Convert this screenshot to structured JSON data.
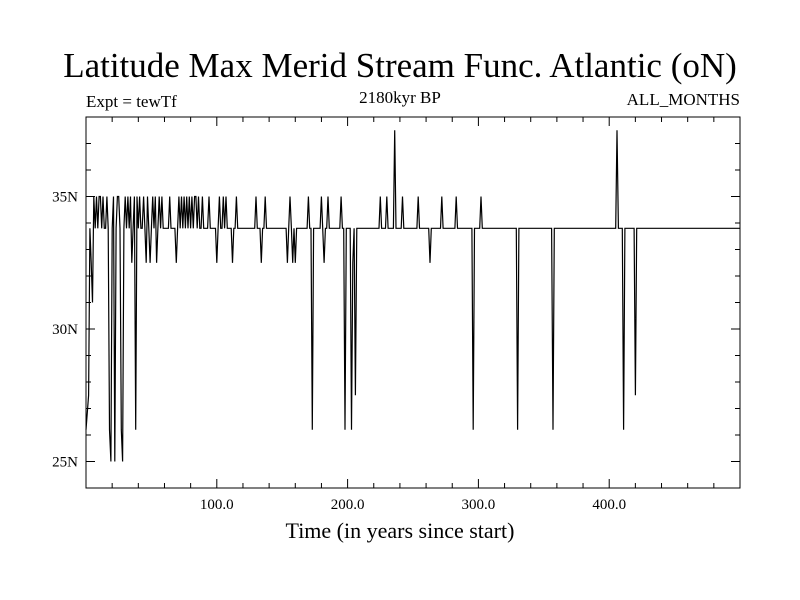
{
  "title": "Latitude Max Merid Stream Func. Atlantic (oN)",
  "left_subtitle": "Expt = tewTf",
  "center_subtitle": "2180kyr BP",
  "right_subtitle": "ALL_MONTHS",
  "chart_data": {
    "type": "line",
    "xlabel": "Time (in years since start)",
    "ylabel": "",
    "xlim": [
      0,
      500
    ],
    "ylim": [
      24,
      38
    ],
    "x_ticks": [
      100,
      200,
      300,
      400
    ],
    "x_tick_labels": [
      "100.0",
      "200.0",
      "300.0",
      "400.0"
    ],
    "y_ticks": [
      25,
      30,
      35
    ],
    "y_tick_labels": [
      "25N",
      "30N",
      "35N"
    ],
    "grid": false,
    "series": [
      {
        "x": [
          0,
          2,
          3,
          4,
          5,
          6,
          7,
          8,
          9,
          10,
          11,
          12,
          13,
          14,
          15,
          16,
          17,
          18,
          19,
          20,
          21,
          22,
          23,
          24,
          25,
          26,
          27,
          28,
          29,
          30,
          31,
          32,
          33,
          34,
          35,
          36,
          37,
          38,
          39,
          40,
          41,
          42,
          43,
          44,
          45,
          46,
          47,
          48,
          49,
          50,
          51,
          52,
          53,
          54,
          55,
          56,
          57,
          58,
          59,
          60,
          61,
          62,
          63,
          64,
          65,
          66,
          67,
          68,
          69,
          70,
          71,
          72,
          73,
          74,
          75,
          76,
          77,
          78,
          79,
          80,
          81,
          82,
          83,
          84,
          85,
          86,
          87,
          88,
          89,
          90,
          91,
          92,
          93,
          94,
          95,
          96,
          97,
          98,
          99,
          100,
          101,
          102,
          103,
          104,
          105,
          106,
          107,
          108,
          109,
          110,
          111,
          112,
          113,
          114,
          115,
          116,
          117,
          118,
          119,
          120,
          121,
          122,
          123,
          124,
          125,
          126,
          127,
          128,
          129,
          130,
          131,
          132,
          133,
          134,
          135,
          136,
          137,
          138,
          139,
          140,
          141,
          142,
          143,
          144,
          145,
          146,
          147,
          148,
          149,
          150,
          151,
          152,
          153,
          154,
          155,
          156,
          157,
          158,
          159,
          160,
          161,
          162,
          163,
          164,
          165,
          166,
          167,
          168,
          169,
          170,
          171,
          172,
          173,
          174,
          175,
          176,
          177,
          178,
          179,
          180,
          181,
          182,
          183,
          184,
          185,
          186,
          187,
          188,
          189,
          190,
          191,
          192,
          193,
          194,
          195,
          196,
          197,
          198,
          199,
          200,
          201,
          202,
          203,
          204,
          205,
          206,
          207,
          208,
          209,
          210,
          211,
          212,
          213,
          214,
          215,
          216,
          217,
          218,
          219,
          220,
          221,
          222,
          223,
          224,
          225,
          226,
          227,
          228,
          229,
          230,
          231,
          232,
          233,
          234,
          235,
          236,
          237,
          238,
          239,
          240,
          241,
          242,
          243,
          244,
          245,
          246,
          247,
          248,
          249,
          250,
          251,
          252,
          253,
          254,
          255,
          256,
          257,
          258,
          259,
          260,
          261,
          262,
          263,
          264,
          265,
          266,
          267,
          268,
          269,
          270,
          271,
          272,
          273,
          274,
          275,
          276,
          277,
          278,
          279,
          280,
          281,
          282,
          283,
          284,
          285,
          286,
          287,
          288,
          289,
          290,
          291,
          292,
          293,
          294,
          295,
          296,
          297,
          298,
          299,
          300,
          301,
          302,
          303,
          304,
          305,
          306,
          307,
          308,
          309,
          310,
          311,
          312,
          313,
          314,
          315,
          316,
          317,
          318,
          319,
          320,
          321,
          322,
          323,
          324,
          325,
          326,
          327,
          328,
          329,
          330,
          331,
          332,
          333,
          334,
          335,
          336,
          337,
          338,
          339,
          340,
          341,
          342,
          343,
          344,
          345,
          346,
          347,
          348,
          349,
          350,
          351,
          352,
          353,
          354,
          355,
          356,
          357,
          358,
          359,
          360,
          361,
          362,
          363,
          364,
          365,
          366,
          367,
          368,
          369,
          370,
          371,
          372,
          373,
          374,
          375,
          376,
          377,
          378,
          379,
          380,
          381,
          382,
          383,
          384,
          385,
          386,
          387,
          388,
          389,
          390,
          391,
          392,
          393,
          394,
          395,
          396,
          397,
          398,
          399,
          400,
          401,
          402,
          403,
          404,
          405,
          406,
          407,
          408,
          409,
          410,
          411,
          412,
          413,
          414,
          415,
          416,
          417,
          418,
          419,
          420,
          421,
          422,
          423,
          424,
          425,
          426,
          427,
          428,
          429,
          430,
          431,
          432,
          433,
          434,
          435,
          436,
          437,
          438,
          439,
          440,
          441,
          442,
          443,
          444,
          445,
          446,
          447,
          448,
          449,
          450,
          451,
          452,
          453,
          454,
          455,
          456,
          457,
          458,
          459,
          460,
          461,
          462,
          463,
          464,
          465,
          466,
          467,
          468,
          469,
          470,
          471,
          472,
          473,
          474,
          475,
          476,
          477,
          478,
          479,
          480,
          481,
          482,
          483,
          484,
          485,
          486,
          487,
          488,
          489,
          490,
          491,
          492,
          493,
          494,
          495,
          496,
          497,
          498,
          499,
          500
        ],
        "y": [
          26.2,
          27.5,
          33.8,
          32.5,
          31.0,
          35.0,
          33.8,
          35.0,
          33.8,
          35.0,
          35.0,
          33.8,
          35.0,
          33.8,
          33.8,
          35.0,
          33.8,
          26.2,
          25.0,
          33.8,
          35.0,
          25.0,
          33.8,
          35.0,
          35.0,
          33.8,
          26.2,
          25.0,
          33.8,
          35.0,
          33.8,
          35.0,
          33.8,
          35.0,
          32.5,
          33.8,
          35.0,
          26.2,
          35.0,
          33.8,
          35.0,
          33.8,
          33.8,
          35.0,
          33.8,
          32.5,
          35.0,
          33.8,
          32.5,
          33.8,
          35.0,
          33.8,
          35.0,
          32.5,
          33.8,
          35.0,
          33.8,
          35.0,
          33.8,
          33.8,
          33.8,
          33.8,
          33.8,
          35.0,
          33.8,
          33.8,
          33.8,
          33.8,
          32.5,
          33.8,
          35.0,
          33.8,
          35.0,
          33.8,
          35.0,
          33.8,
          35.0,
          33.8,
          35.0,
          33.8,
          35.0,
          33.8,
          35.0,
          35.0,
          33.8,
          35.0,
          33.8,
          33.8,
          35.0,
          33.8,
          33.8,
          33.8,
          33.8,
          35.0,
          33.8,
          33.8,
          33.8,
          33.8,
          33.8,
          32.5,
          33.8,
          35.0,
          33.8,
          33.8,
          35.0,
          33.8,
          35.0,
          33.8,
          33.8,
          33.8,
          33.8,
          32.5,
          33.8,
          33.8,
          35.0,
          33.8,
          33.8,
          33.8,
          33.8,
          33.8,
          33.8,
          33.8,
          33.8,
          33.8,
          33.8,
          33.8,
          33.8,
          33.8,
          33.8,
          35.0,
          33.8,
          33.8,
          33.8,
          32.5,
          33.8,
          33.8,
          35.0,
          33.8,
          33.8,
          33.8,
          33.8,
          33.8,
          33.8,
          33.8,
          33.8,
          33.8,
          33.8,
          33.8,
          33.8,
          33.8,
          33.8,
          33.8,
          33.8,
          32.5,
          33.8,
          35.0,
          33.8,
          32.5,
          33.8,
          32.5,
          33.8,
          33.8,
          33.8,
          33.8,
          33.8,
          33.8,
          33.8,
          33.8,
          33.8,
          35.0,
          33.8,
          33.8,
          26.2,
          33.8,
          33.8,
          33.8,
          33.8,
          33.8,
          33.8,
          35.0,
          33.8,
          32.5,
          33.8,
          33.8,
          35.0,
          33.8,
          33.8,
          33.8,
          33.8,
          33.8,
          33.8,
          33.8,
          33.8,
          33.8,
          35.0,
          33.8,
          33.8,
          26.2,
          33.8,
          33.8,
          33.8,
          33.8,
          26.2,
          32.5,
          33.8,
          27.5,
          33.8,
          33.8,
          33.8,
          33.8,
          33.8,
          33.8,
          33.8,
          33.8,
          33.8,
          33.8,
          33.8,
          33.8,
          33.8,
          33.8,
          33.8,
          33.8,
          33.8,
          33.8,
          35.0,
          33.8,
          33.8,
          33.8,
          33.8,
          35.0,
          33.8,
          33.8,
          33.8,
          33.8,
          33.8,
          37.5,
          33.8,
          33.8,
          33.8,
          33.8,
          33.8,
          35.0,
          33.8,
          33.8,
          33.8,
          33.8,
          33.8,
          33.8,
          33.8,
          33.8,
          33.8,
          33.8,
          33.8,
          35.0,
          33.8,
          33.8,
          33.8,
          33.8,
          33.8,
          33.8,
          33.8,
          33.8,
          32.5,
          33.8,
          33.8,
          33.8,
          33.8,
          33.8,
          33.8,
          33.8,
          33.8,
          35.0,
          33.8,
          33.8,
          33.8,
          33.8,
          33.8,
          33.8,
          33.8,
          33.8,
          33.8,
          33.8,
          35.0,
          33.8,
          33.8,
          33.8,
          33.8,
          33.8,
          33.8,
          33.8,
          33.8,
          33.8,
          33.8,
          33.8,
          33.8,
          26.2,
          33.8,
          33.8,
          33.8,
          33.8,
          33.8,
          35.0,
          33.8,
          33.8,
          33.8,
          33.8,
          33.8,
          33.8,
          33.8,
          33.8,
          33.8,
          33.8,
          33.8,
          33.8,
          33.8,
          33.8,
          33.8,
          33.8,
          33.8,
          33.8,
          33.8,
          33.8,
          33.8,
          33.8,
          33.8,
          33.8,
          33.8,
          33.8,
          33.8,
          26.2,
          33.8,
          33.8,
          33.8,
          33.8,
          33.8,
          33.8,
          33.8,
          33.8,
          33.8,
          33.8,
          33.8,
          33.8,
          33.8,
          33.8,
          33.8,
          33.8,
          33.8,
          33.8,
          33.8,
          33.8,
          33.8,
          33.8,
          33.8,
          33.8,
          33.8,
          33.8,
          26.2,
          33.8,
          33.8,
          33.8,
          33.8,
          33.8,
          33.8,
          33.8,
          33.8,
          33.8,
          33.8,
          33.8,
          33.8,
          33.8,
          33.8,
          33.8,
          33.8,
          33.8,
          33.8,
          33.8,
          33.8,
          33.8,
          33.8,
          33.8,
          33.8,
          33.8,
          33.8,
          33.8,
          33.8,
          33.8,
          33.8,
          33.8,
          33.8,
          33.8,
          33.8,
          33.8,
          33.8,
          33.8,
          33.8,
          33.8,
          33.8,
          33.8,
          33.8,
          33.8,
          33.8,
          33.8,
          33.8,
          33.8,
          33.8,
          37.5,
          33.8,
          33.8,
          33.8,
          33.8,
          26.2,
          33.8,
          33.8,
          33.8,
          33.8,
          33.8,
          33.8,
          33.8,
          33.8,
          27.5,
          33.8,
          33.8,
          33.8,
          33.8,
          33.8,
          33.8,
          33.8,
          33.8,
          33.8,
          33.8,
          33.8,
          33.8,
          33.8,
          33.8,
          33.8,
          33.8,
          33.8,
          33.8,
          33.8,
          33.8,
          33.8,
          33.8,
          33.8,
          33.8,
          33.8,
          33.8,
          33.8,
          33.8,
          33.8,
          33.8,
          33.8,
          33.8,
          33.8,
          33.8,
          33.8,
          33.8,
          33.8,
          33.8,
          33.8,
          33.8,
          33.8,
          33.8,
          33.8,
          33.8,
          33.8,
          33.8,
          33.8,
          33.8,
          33.8,
          33.8,
          33.8,
          33.8,
          33.8,
          33.8,
          33.8,
          33.8,
          33.8,
          33.8,
          33.8,
          33.8,
          33.8,
          33.8,
          33.8,
          33.8,
          33.8,
          33.8,
          33.8,
          33.8,
          33.8,
          33.8,
          33.8,
          33.8,
          33.8,
          33.8,
          33.8,
          33.8,
          33.8,
          33.8,
          33.8,
          33.8
        ]
      }
    ]
  }
}
